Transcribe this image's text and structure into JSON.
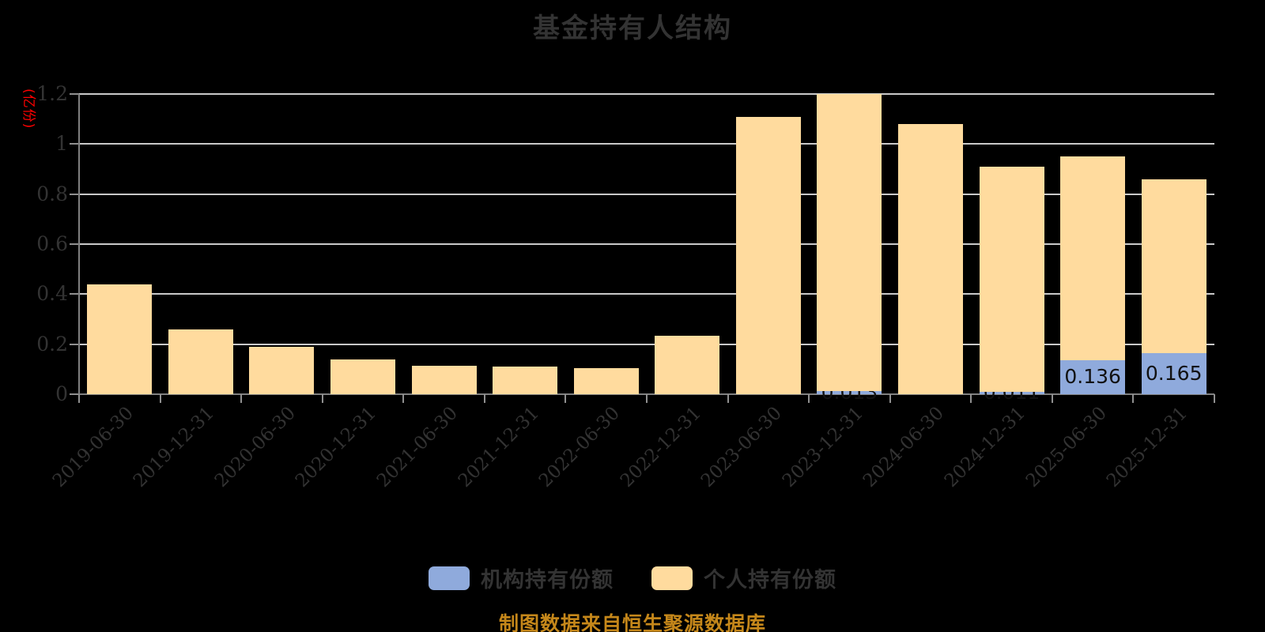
{
  "title": "基金持有人结构",
  "y_axis": {
    "name": "(亿份)",
    "name_color": "#ff0000",
    "ticks": [
      0,
      0.2,
      0.4,
      0.6,
      0.8,
      1,
      1.2
    ],
    "tick_labels": [
      "0",
      "0.2",
      "0.4",
      "0.6",
      "0.8",
      "1",
      "1.2"
    ],
    "max": 1.2
  },
  "chart_data": {
    "type": "bar",
    "stacked": true,
    "title": "基金持有人结构",
    "ylabel": "(亿份)",
    "ylim": [
      0,
      1.2
    ],
    "grid": true,
    "legend_position": "bottom",
    "categories": [
      "2019-06-30",
      "2019-12-31",
      "2020-06-30",
      "2020-12-31",
      "2021-06-30",
      "2021-12-31",
      "2022-06-30",
      "2022-12-31",
      "2023-06-30",
      "2023-12-31",
      "2024-06-30",
      "2024-12-31",
      "2025-06-30",
      "2025-12-31"
    ],
    "series": [
      {
        "name": "机构持有份额",
        "color": "#8faadc",
        "values": [
          0,
          0,
          0,
          0,
          0,
          0,
          0,
          0,
          0,
          0.013,
          0,
          0.011,
          0.136,
          0.165
        ],
        "labels": [
          "",
          "",
          "",
          "",
          "",
          "",
          "",
          "",
          "",
          "0.013",
          "",
          "0.011",
          "0.136",
          "0.165"
        ]
      },
      {
        "name": "个人持有份额",
        "color": "#ffdb9e",
        "values": [
          0.44,
          0.26,
          0.19,
          0.14,
          0.115,
          0.11,
          0.105,
          0.235,
          1.11,
          1.187,
          1.08,
          0.899,
          0.814,
          0.695
        ]
      }
    ]
  },
  "legend": {
    "items": [
      {
        "label": "机构持有份额",
        "color": "#8faadc"
      },
      {
        "label": "个人持有份额",
        "color": "#ffdb9e"
      }
    ]
  },
  "caption": "制图数据来自恒生聚源数据库",
  "colors": {
    "background": "#000000",
    "grid": "#c9c9c9",
    "axis": "#808080",
    "tick_text": "#333333",
    "title_text": "#333333",
    "bar_label_text": "#111111",
    "caption_text": "#c5871a"
  }
}
